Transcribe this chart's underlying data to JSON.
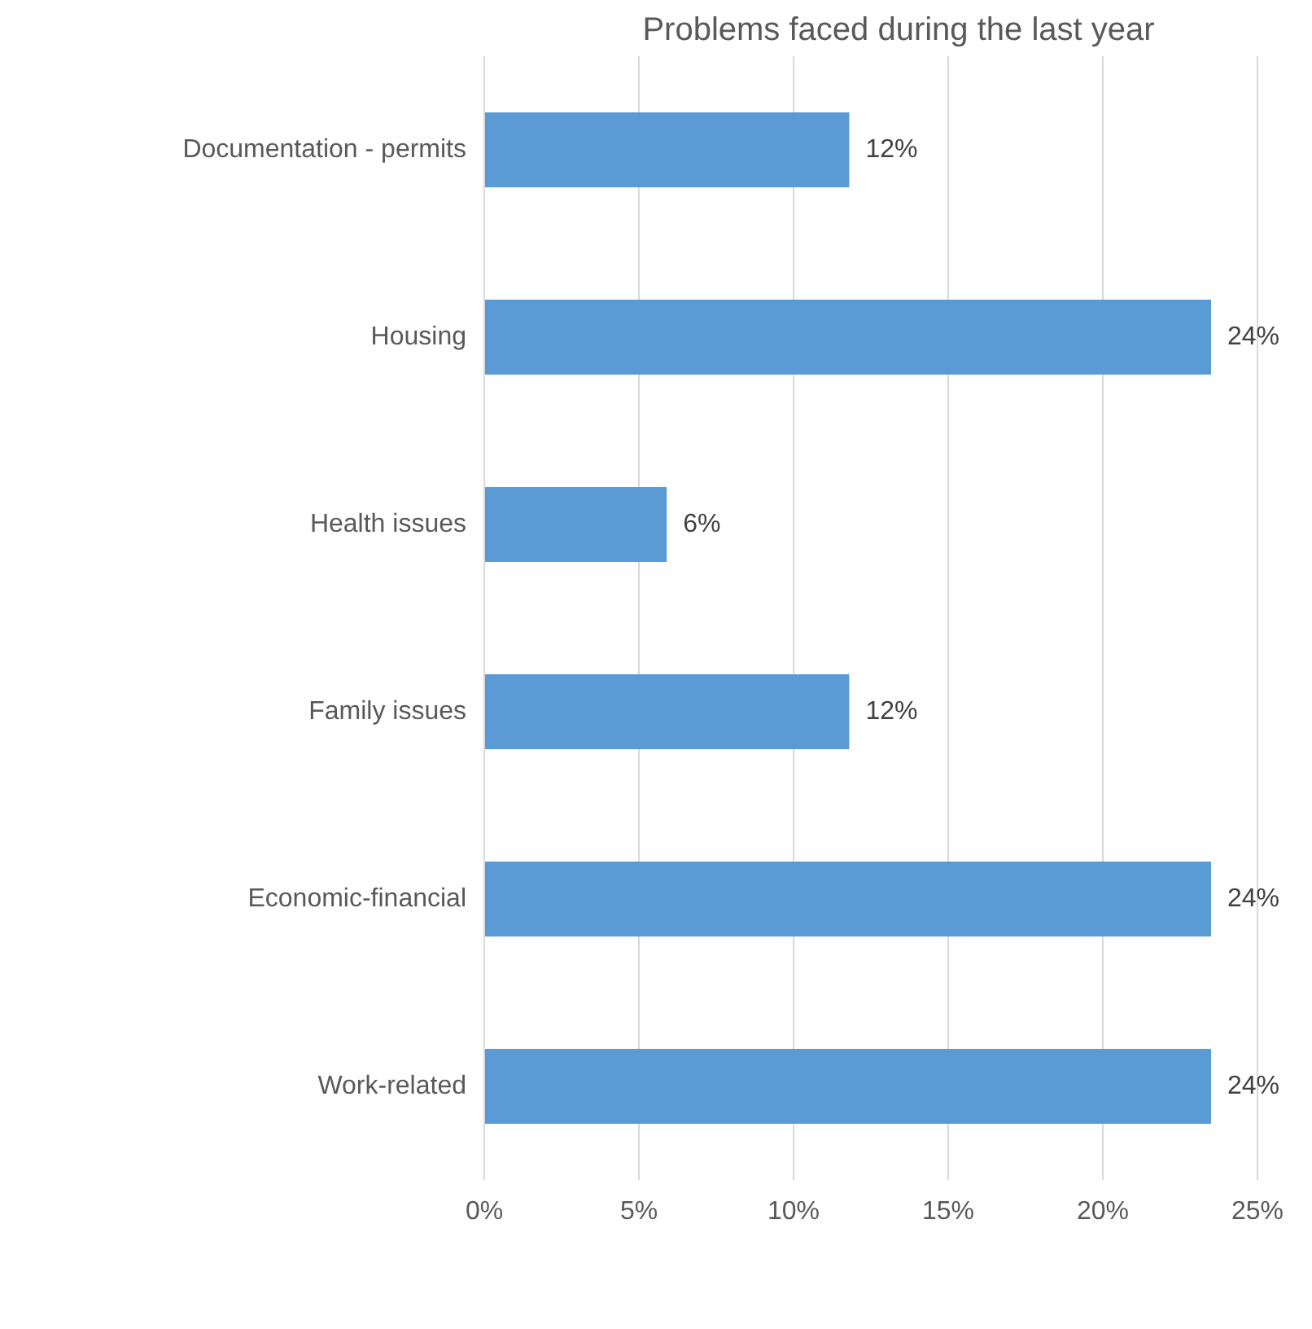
{
  "chart_data": {
    "type": "bar",
    "orientation": "horizontal",
    "title": "Problems faced during the last year",
    "categories": [
      "Documentation - permits",
      "Housing",
      "Health issues",
      "Family issues",
      "Economic-financial",
      "Work-related"
    ],
    "values": [
      11.8,
      23.5,
      5.9,
      11.8,
      23.5,
      23.5
    ],
    "value_labels": [
      "12%",
      "24%",
      "6%",
      "12%",
      "24%",
      "24%"
    ],
    "color": "#5b9bd5",
    "xlim": [
      0,
      25
    ],
    "xticks": [
      {
        "value": 0,
        "label": "0%"
      },
      {
        "value": 5,
        "label": "5%"
      },
      {
        "value": 10,
        "label": "10%"
      },
      {
        "value": 15,
        "label": "15%"
      },
      {
        "value": 20,
        "label": "20%"
      },
      {
        "value": 25,
        "label": "25%"
      }
    ],
    "grid": "x"
  }
}
